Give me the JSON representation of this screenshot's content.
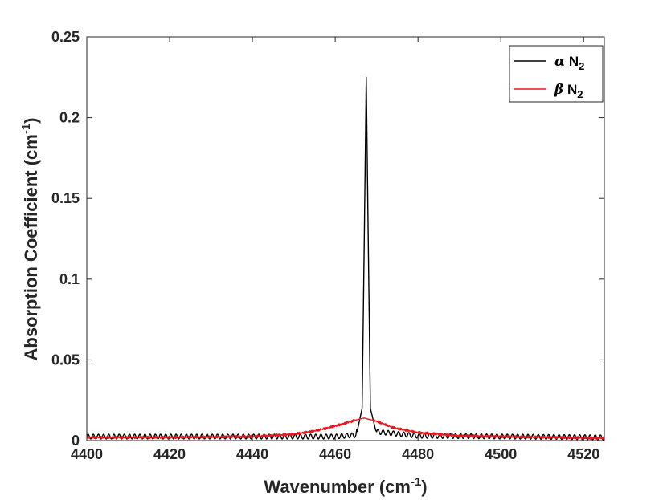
{
  "chart_data": {
    "type": "line",
    "xlabel": {
      "main": "Wavenumber (cm",
      "sup": "-1",
      "tail": ")"
    },
    "ylabel": {
      "main": "Absorption Coefficient (cm",
      "sup": "-1",
      "tail": ")"
    },
    "xlim": [
      4400,
      4525
    ],
    "ylim": [
      0,
      0.25
    ],
    "xticks": [
      "4400",
      "4420",
      "4440",
      "4460",
      "4480",
      "4500",
      "4520"
    ],
    "yticks": [
      "0",
      "0.05",
      "0.1",
      "0.15",
      "0.2",
      "0.25"
    ],
    "grid": false,
    "legend_position": "top-right",
    "series": [
      {
        "name": {
          "greek": "α",
          "main": " N",
          "sub": "2"
        },
        "color": "#000000",
        "peak": {
          "x": 4467.5,
          "y": 0.225
        },
        "baseline_noise": 0.003,
        "points": [
          [
            4400,
            0.001
          ],
          [
            4440,
            0.001
          ],
          [
            4460,
            0.001
          ],
          [
            4465,
            0.002
          ],
          [
            4466.5,
            0.02
          ],
          [
            4467,
            0.12
          ],
          [
            4467.5,
            0.225
          ],
          [
            4468,
            0.12
          ],
          [
            4468.5,
            0.02
          ],
          [
            4470,
            0.004
          ],
          [
            4480,
            0.0015
          ],
          [
            4525,
            0.0005
          ]
        ]
      },
      {
        "name": {
          "greek": "β",
          "main": " N",
          "sub": "2"
        },
        "color": "#e8161c",
        "peak": {
          "x": 4467,
          "y": 0.014
        },
        "baseline_noise": 0.0008,
        "points": [
          [
            4400,
            0.002
          ],
          [
            4420,
            0.002
          ],
          [
            4440,
            0.0025
          ],
          [
            4450,
            0.004
          ],
          [
            4455,
            0.006
          ],
          [
            4460,
            0.009
          ],
          [
            4464,
            0.012
          ],
          [
            4466,
            0.0135
          ],
          [
            4467,
            0.014
          ],
          [
            4470,
            0.012
          ],
          [
            4474,
            0.008
          ],
          [
            4480,
            0.005
          ],
          [
            4490,
            0.003
          ],
          [
            4500,
            0.0025
          ],
          [
            4525,
            0.0015
          ]
        ]
      }
    ]
  }
}
